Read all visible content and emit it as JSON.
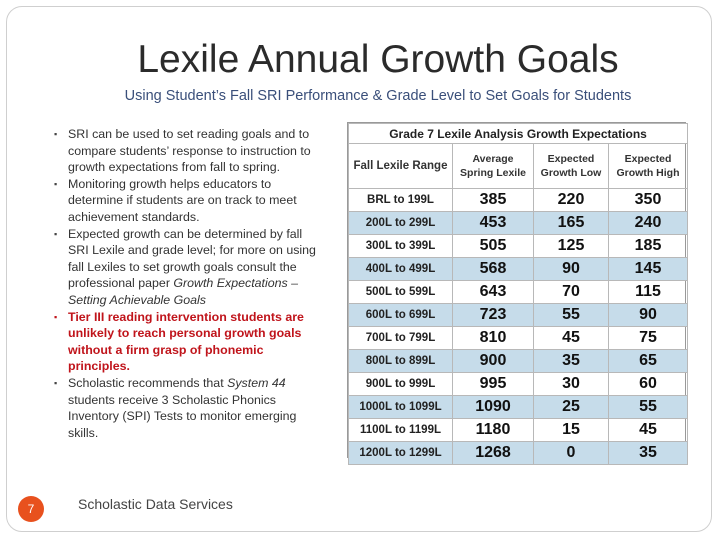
{
  "title": "Lexile Annual Growth Goals",
  "subtitle": "Using Student’s Fall SRI Performance & Grade Level to Set Goals for Students",
  "bullets": [
    {
      "text": "SRI can be used to set reading goals and to compare students’ response to instruction to growth expectations from fall to spring."
    },
    {
      "text": "Monitoring growth helps educators to determine if students are on track to meet achievement standards."
    },
    {
      "text_before": "Expected growth can be determined by fall SRI Lexile and grade level; for more on using fall Lexiles to set growth goals consult the professional paper ",
      "text_em": "Growth Expectations – Setting Achievable Goals",
      "text_after": ""
    },
    {
      "text": "Tier III reading intervention students are unlikely to reach personal growth goals without a firm grasp of phonemic principles."
    },
    {
      "text_before": "Scholastic recommends that ",
      "text_em": "System 44",
      "text_after": " students receive 3 Scholastic Phonics Inventory (SPI) Tests to monitor emerging skills."
    }
  ],
  "table": {
    "caption": "Grade 7 Lexile Analysis Growth Expectations",
    "headers": {
      "range": "Fall Lexile Range",
      "avg_line1": "Average",
      "avg_line2": "Spring Lexile",
      "low_line1": "Expected",
      "low_line2": "Growth Low",
      "high_line1": "Expected",
      "high_line2": "Growth High"
    },
    "rows": [
      {
        "range": "BRL to 199L",
        "avg": "385",
        "low": "220",
        "high": "350"
      },
      {
        "range": "200L to 299L",
        "avg": "453",
        "low": "165",
        "high": "240"
      },
      {
        "range": "300L to 399L",
        "avg": "505",
        "low": "125",
        "high": "185"
      },
      {
        "range": "400L to 499L",
        "avg": "568",
        "low": "90",
        "high": "145"
      },
      {
        "range": "500L to 599L",
        "avg": "643",
        "low": "70",
        "high": "115"
      },
      {
        "range": "600L to 699L",
        "avg": "723",
        "low": "55",
        "high": "90"
      },
      {
        "range": "700L to 799L",
        "avg": "810",
        "low": "45",
        "high": "75"
      },
      {
        "range": "800L to 899L",
        "avg": "900",
        "low": "35",
        "high": "65"
      },
      {
        "range": "900L to 999L",
        "avg": "995",
        "low": "30",
        "high": "60"
      },
      {
        "range": "1000L to 1099L",
        "avg": "1090",
        "low": "25",
        "high": "55"
      },
      {
        "range": "1100L to 1199L",
        "avg": "1180",
        "low": "15",
        "high": "45"
      },
      {
        "range": "1200L to 1299L",
        "avg": "1268",
        "low": "0",
        "high": "35"
      }
    ],
    "highlight_color": "#c6dcea"
  },
  "page_number": "7",
  "footer": "Scholastic Data Services",
  "colors": {
    "accent": "#e8511e",
    "emphasis": "#c0141b",
    "subtitle": "#3a4f7a"
  }
}
